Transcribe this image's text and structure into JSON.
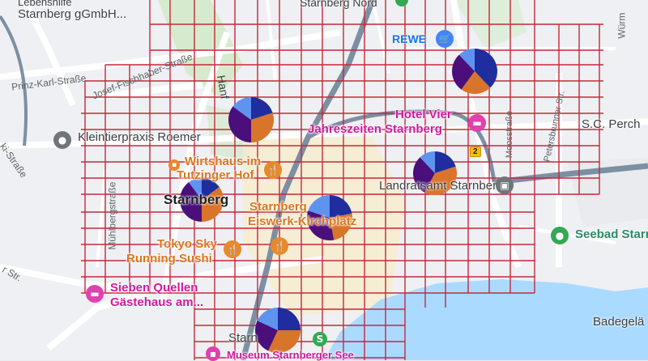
{
  "map": {
    "streets": {
      "prinz_karl": "Prinz-Karl-Straße",
      "joseph_fischhaber": "Josef-Fischhaber-Straße",
      "hanfelder": "Hanf",
      "muehlberg": "Mühlbergstraße",
      "moos": "Moosstraße",
      "petersbrunner": "Petersbrunner Str.",
      "ki_strasse": "ki-Straße",
      "left_str": "r Str.",
      "wuerm": "Würm",
      "elsa": "Badegelä"
    },
    "places": {
      "top_left_line1": "Lebenshilfe",
      "top_left_line2": "Starnberg gGmbH...",
      "starnberg_nord": "Starnberg Nord",
      "rewe": "REWE",
      "kleintierpraxis": "Kleintierpraxis Roemer",
      "hotel_vier_1": "Hotel Vier",
      "hotel_vier_2": "Jahreszeiten Starnberg",
      "sc_perch": "S.C. Perch",
      "wirtshaus_1": "Wirtshaus im",
      "wirtshaus_2": "Tutzinger Hof",
      "landratsamt": "Landratsamt Starnberg",
      "starnberg": "Starnberg",
      "eiswerk_1": "Starnberg",
      "eiswerk_2": "Eiswerk-Kirchplatz",
      "tokyo_1": "Tokyo Sky",
      "tokyo_2": "Running Sushi",
      "seebad": "Seebad Starnberg",
      "sieben_1": "Sieben Quellen",
      "sieben_2": "Gästehaus am...",
      "starn_bottom": "Starn",
      "museum": "Museum Starnberger See",
      "road_badge": "2"
    }
  },
  "pies": [
    {
      "id": "pie-north-east",
      "slices": [
        0.38,
        0.22,
        0.28,
        0.12
      ]
    },
    {
      "id": "pie-hanfelder",
      "slices": [
        0.2,
        0.3,
        0.35,
        0.15
      ]
    },
    {
      "id": "pie-east",
      "slices": [
        0.2,
        0.38,
        0.3,
        0.12
      ]
    },
    {
      "id": "pie-west",
      "slices": [
        0.15,
        0.35,
        0.4,
        0.1
      ]
    },
    {
      "id": "pie-center",
      "slices": [
        0.22,
        0.25,
        0.33,
        0.2
      ]
    },
    {
      "id": "pie-south",
      "slices": [
        0.25,
        0.32,
        0.25,
        0.18
      ]
    }
  ],
  "colors": {
    "pie": [
      "#1f2d9e",
      "#d9742b",
      "#4a0f7a",
      "#5f93f0"
    ],
    "grid": "#c6283a",
    "water": "#aadaff",
    "rail": "#7d8fa3"
  },
  "icons": {
    "rewe": "cart-icon",
    "kleintierpraxis": "pin-icon",
    "hotel": "hotel-bed-icon",
    "wirtshaus": "fork-knife-icon",
    "eiswerk": "fork-knife-icon",
    "tokyo": "fork-knife-icon",
    "seebad": "pin-icon",
    "sieben": "hotel-bed-icon",
    "landratsamt": "government-icon",
    "station": "train-station-icon"
  }
}
